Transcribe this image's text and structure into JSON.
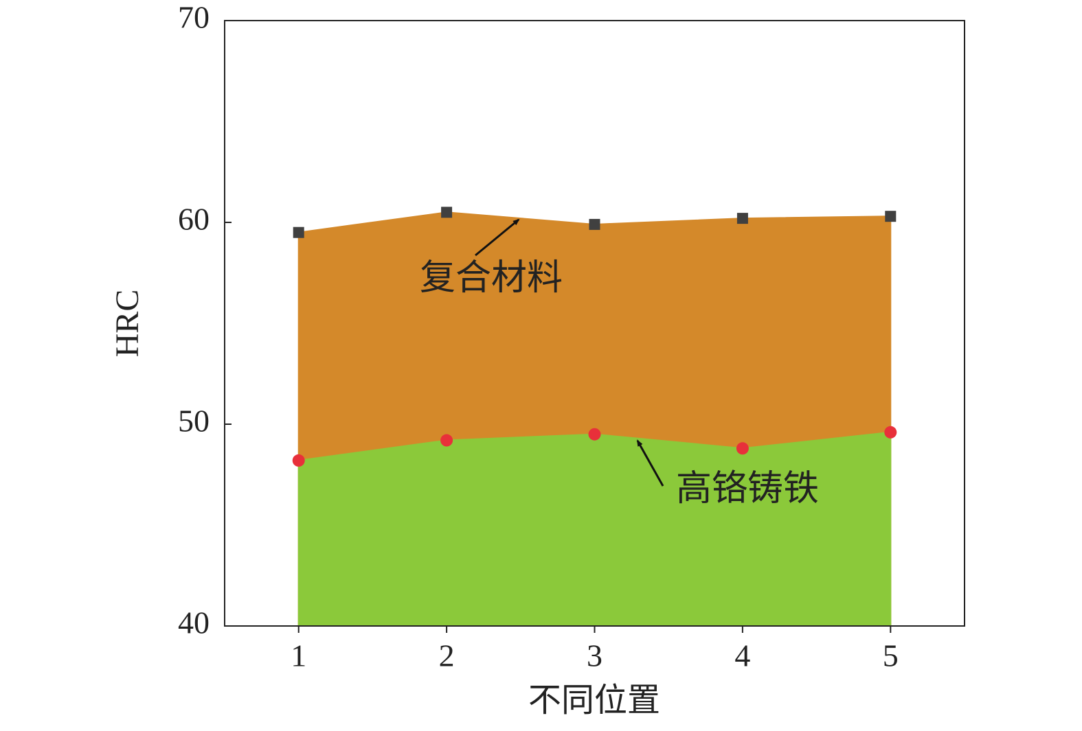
{
  "chart_data": {
    "type": "area",
    "xlabel": "不同位置",
    "ylabel": "HRC",
    "x": [
      1,
      2,
      3,
      4,
      5
    ],
    "series": [
      {
        "name": "复合材料",
        "color": "#d4892a",
        "marker_color": "#404040",
        "marker": "square",
        "values": [
          59.5,
          60.5,
          59.9,
          60.2,
          60.3
        ]
      },
      {
        "name": "高铬铸铁",
        "color": "#8bc93a",
        "marker_color": "#e8303a",
        "marker": "circle",
        "values": [
          48.2,
          49.2,
          49.5,
          48.8,
          49.6
        ]
      }
    ],
    "xlim": [
      0.5,
      5.5
    ],
    "xticks": [
      1,
      2,
      3,
      4,
      5
    ],
    "ylim": [
      40,
      70
    ],
    "yticks": [
      40,
      50,
      60,
      70
    ],
    "grid": false
  }
}
